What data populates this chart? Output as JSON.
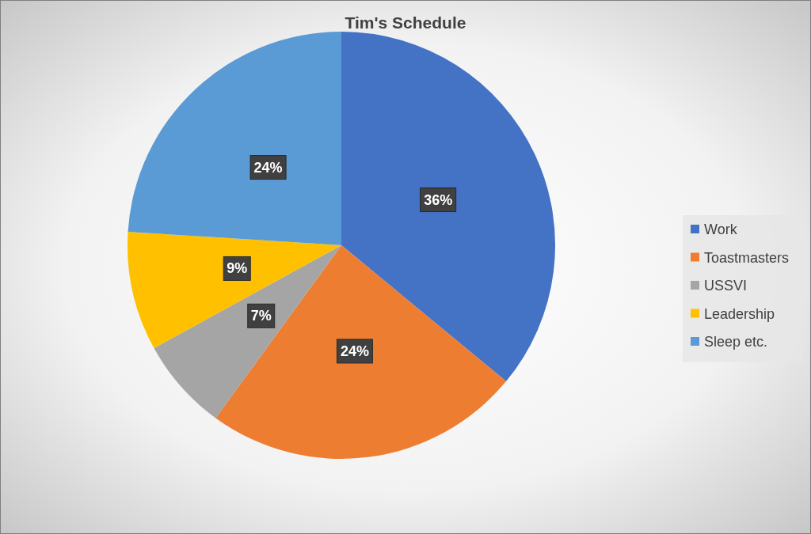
{
  "chart_data": {
    "type": "pie",
    "title": "Tim's Schedule",
    "categories": [
      "Work",
      "Toastmasters",
      "USSVI",
      "Leadership",
      "Sleep etc."
    ],
    "values": [
      36,
      24,
      7,
      9,
      24
    ],
    "colors": [
      "#4472c4",
      "#ed7d31",
      "#a5a5a5",
      "#ffc000",
      "#5b9bd5"
    ],
    "value_labels": [
      "36%",
      "24%",
      "7%",
      "9%",
      "24%"
    ],
    "legend": "right"
  }
}
